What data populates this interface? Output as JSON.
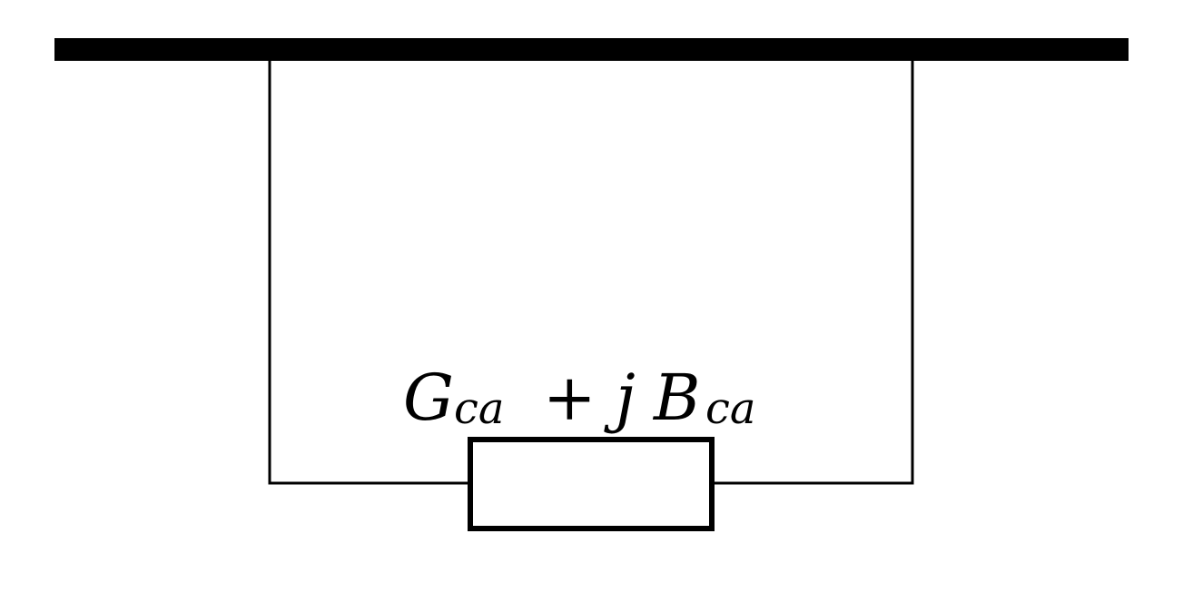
{
  "diagram": {
    "colors": {
      "background": "#ffffff",
      "stroke": "#000000"
    },
    "element_label": {
      "G": "G",
      "G_sub": "ca",
      "plus": "+",
      "j": "j",
      "B": "B",
      "B_sub": "ca"
    }
  }
}
